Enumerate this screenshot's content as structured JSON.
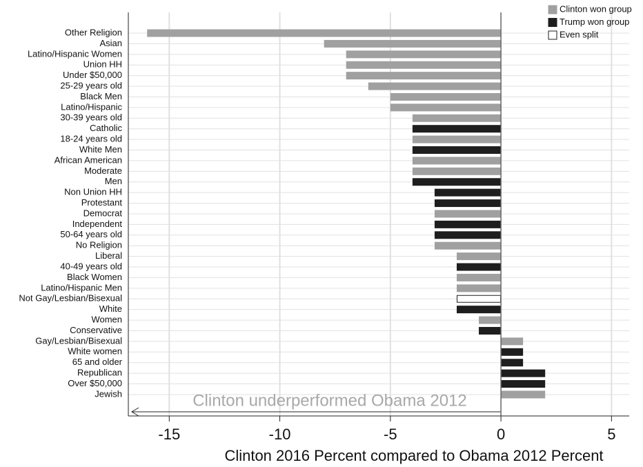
{
  "chart_data": {
    "type": "hbar",
    "xlabel": "Clinton 2016 Percent compared to Obama 2012 Percent",
    "annotation": "Clinton underperformed Obama 2012",
    "categories": [
      "Other Religion",
      "Asian",
      "Latino/Hispanic Women",
      "Union HH",
      "Under $50,000",
      "25-29 years old",
      "Black Men",
      "Latino/Hispanic",
      "30-39 years old",
      "Catholic",
      "18-24 years old",
      "White Men",
      "African American",
      "Moderate",
      "Men",
      "Non Union HH",
      "Protestant",
      "Democrat",
      "Independent",
      "50-64 years old",
      "No Religion",
      "Liberal",
      "40-49 years old",
      "Black Women",
      "Latino/Hispanic Men",
      "Not Gay/Lesbian/Bisexual",
      "White",
      "Women",
      "Conservative",
      "Gay/Lesbian/Bisexual",
      "White women",
      "65 and older",
      "Republican",
      "Over $50,000",
      "Jewish"
    ],
    "series": [
      {
        "name": "Clinton won group",
        "color": "#a0a0a0",
        "edgecolor": "#a0a0a0",
        "values": [
          -16,
          -8,
          -7,
          -7,
          -7,
          -6,
          -5,
          -5,
          -4,
          null,
          -4,
          null,
          -4,
          -4,
          null,
          null,
          null,
          -3,
          null,
          null,
          -3,
          -2,
          null,
          -2,
          -2,
          null,
          null,
          -1,
          null,
          1,
          null,
          null,
          null,
          null,
          2
        ]
      },
      {
        "name": "Trump won group",
        "color": "#1e1e1e",
        "edgecolor": "#1e1e1e",
        "values": [
          null,
          null,
          null,
          null,
          null,
          null,
          null,
          null,
          null,
          -4,
          null,
          -4,
          null,
          null,
          -4,
          -3,
          -3,
          null,
          -3,
          -3,
          null,
          null,
          -2,
          null,
          null,
          null,
          -2,
          null,
          -1,
          null,
          1,
          1,
          2,
          2,
          null
        ]
      },
      {
        "name": "Even split",
        "color": "#ffffff",
        "edgecolor": "#1e1e1e",
        "values": [
          null,
          null,
          null,
          null,
          null,
          null,
          null,
          null,
          null,
          null,
          null,
          null,
          null,
          null,
          null,
          null,
          null,
          null,
          null,
          null,
          null,
          null,
          null,
          null,
          null,
          -2,
          null,
          null,
          null,
          null,
          null,
          null,
          null,
          null,
          null
        ]
      }
    ],
    "xlim": [
      -16.85,
      5.8
    ],
    "xticks": [
      -15,
      -10,
      -5,
      0,
      5
    ],
    "grid": true,
    "legend": "top-right"
  }
}
